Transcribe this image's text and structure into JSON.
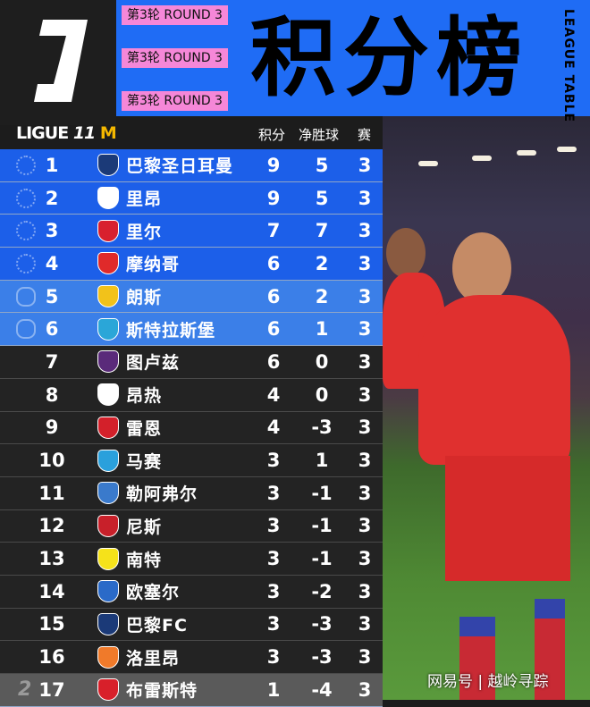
{
  "header": {
    "title": "积分榜",
    "round_tag": "第3轮  ROUND 3",
    "vertical_label": "LEAGUE TABLE",
    "league_name": "LIGUE",
    "sponsor": "M"
  },
  "columns": {
    "points": "积分",
    "goal_diff": "净胜球",
    "played": "赛"
  },
  "rows": [
    {
      "rank": "1",
      "team": "巴黎圣日耳曼",
      "pts": "9",
      "gd": "5",
      "pl": "3",
      "zone": "cl",
      "badge": "#1b3a78"
    },
    {
      "rank": "2",
      "team": "里昂",
      "pts": "9",
      "gd": "5",
      "pl": "3",
      "zone": "cl",
      "badge": "#ffffff"
    },
    {
      "rank": "3",
      "team": "里尔",
      "pts": "7",
      "gd": "7",
      "pl": "3",
      "zone": "cl",
      "badge": "#d8202e"
    },
    {
      "rank": "4",
      "team": "摩纳哥",
      "pts": "6",
      "gd": "2",
      "pl": "3",
      "zone": "cl",
      "badge": "#e02a2a"
    },
    {
      "rank": "5",
      "team": "朗斯",
      "pts": "6",
      "gd": "2",
      "pl": "3",
      "zone": "el",
      "badge": "#f2c21a"
    },
    {
      "rank": "6",
      "team": "斯特拉斯堡",
      "pts": "6",
      "gd": "1",
      "pl": "3",
      "zone": "el",
      "badge": "#2aa6d8"
    },
    {
      "rank": "7",
      "team": "图卢兹",
      "pts": "6",
      "gd": "0",
      "pl": "3",
      "zone": "mid",
      "badge": "#5a2a7a"
    },
    {
      "rank": "8",
      "team": "昂热",
      "pts": "4",
      "gd": "0",
      "pl": "3",
      "zone": "mid",
      "badge": "#ffffff"
    },
    {
      "rank": "9",
      "team": "雷恩",
      "pts": "4",
      "gd": "-3",
      "pl": "3",
      "zone": "mid",
      "badge": "#d3202a"
    },
    {
      "rank": "10",
      "team": "马赛",
      "pts": "3",
      "gd": "1",
      "pl": "3",
      "zone": "mid",
      "badge": "#2aa0dc"
    },
    {
      "rank": "11",
      "team": "勒阿弗尔",
      "pts": "3",
      "gd": "-1",
      "pl": "3",
      "zone": "mid",
      "badge": "#3a7acc"
    },
    {
      "rank": "12",
      "team": "尼斯",
      "pts": "3",
      "gd": "-1",
      "pl": "3",
      "zone": "mid",
      "badge": "#c8202a"
    },
    {
      "rank": "13",
      "team": "南特",
      "pts": "3",
      "gd": "-1",
      "pl": "3",
      "zone": "mid",
      "badge": "#f5e21a"
    },
    {
      "rank": "14",
      "team": "欧塞尔",
      "pts": "3",
      "gd": "-2",
      "pl": "3",
      "zone": "mid",
      "badge": "#2a6ac8"
    },
    {
      "rank": "15",
      "team": "巴黎FC",
      "pts": "3",
      "gd": "-3",
      "pl": "3",
      "zone": "mid",
      "badge": "#1b3a78"
    },
    {
      "rank": "16",
      "team": "洛里昂",
      "pts": "3",
      "gd": "-3",
      "pl": "3",
      "zone": "mid",
      "badge": "#f07a2a"
    },
    {
      "rank": "17",
      "team": "布雷斯特",
      "pts": "1",
      "gd": "-4",
      "pl": "3",
      "zone": "rel",
      "badge": "#d8202a"
    }
  ],
  "watermark": "网易号 | 越岭寻踪"
}
